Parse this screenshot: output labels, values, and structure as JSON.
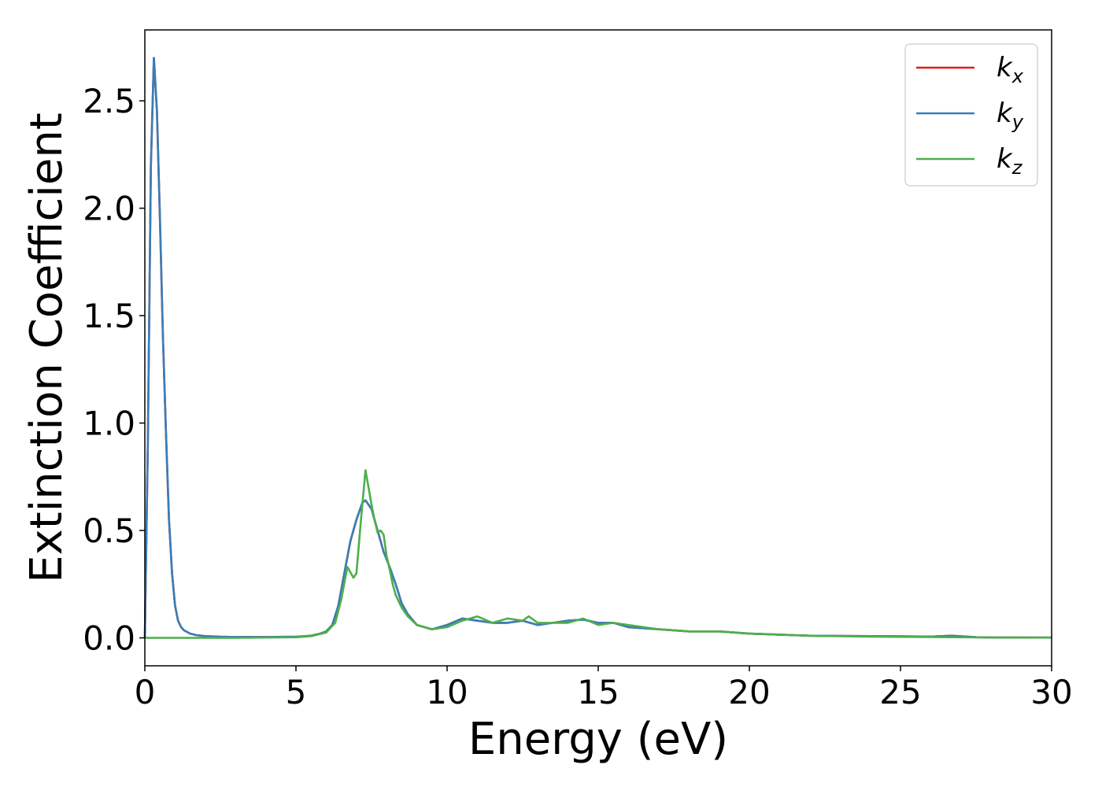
{
  "chart_data": {
    "type": "line",
    "title": "",
    "xlabel": "Energy (eV)",
    "ylabel": "Extinction Coefficient",
    "xlim": [
      0,
      30
    ],
    "ylim": [
      -0.13,
      2.83
    ],
    "xticks": [
      0,
      5,
      10,
      15,
      20,
      25,
      30
    ],
    "xtick_labels": [
      "0",
      "5",
      "10",
      "15",
      "20",
      "25",
      "30"
    ],
    "yticks": [
      0.0,
      0.5,
      1.0,
      1.5,
      2.0,
      2.5
    ],
    "ytick_labels": [
      "0.0",
      "0.5",
      "1.0",
      "1.5",
      "2.0",
      "2.5"
    ],
    "grid": false,
    "legend_position": "top-right",
    "series": [
      {
        "name": "k_x",
        "legend_base": "k",
        "legend_sub": "x",
        "color": "#e41a1c",
        "x": [
          0.0,
          0.1,
          0.2,
          0.3,
          0.4,
          0.5,
          0.6,
          0.7,
          0.8,
          0.9,
          1.0,
          1.1,
          1.2,
          1.3,
          1.5,
          1.7,
          2.0,
          2.5,
          3.0,
          4.0,
          5.0,
          5.5,
          5.8,
          6.0,
          6.2,
          6.4,
          6.6,
          6.8,
          7.0,
          7.2,
          7.3,
          7.5,
          7.7,
          7.9,
          8.1,
          8.3,
          8.5,
          8.7,
          9.0,
          9.5,
          10.0,
          10.5,
          11.0,
          11.5,
          12.0,
          12.5,
          13.0,
          13.5,
          14.0,
          14.5,
          15.0,
          15.5,
          16.0,
          17.0,
          18.0,
          19.0,
          20.0,
          21.0,
          22.0,
          24.0,
          26.0,
          26.7,
          27.5,
          28.0,
          30.0
        ],
        "y": [
          0.0,
          0.9,
          2.2,
          2.7,
          2.45,
          1.95,
          1.4,
          0.95,
          0.55,
          0.3,
          0.15,
          0.08,
          0.05,
          0.035,
          0.02,
          0.013,
          0.008,
          0.005,
          0.004,
          0.004,
          0.005,
          0.01,
          0.02,
          0.03,
          0.06,
          0.15,
          0.3,
          0.45,
          0.55,
          0.63,
          0.64,
          0.6,
          0.5,
          0.4,
          0.33,
          0.25,
          0.16,
          0.11,
          0.06,
          0.04,
          0.06,
          0.09,
          0.08,
          0.07,
          0.07,
          0.08,
          0.06,
          0.07,
          0.08,
          0.085,
          0.07,
          0.07,
          0.05,
          0.04,
          0.03,
          0.03,
          0.02,
          0.015,
          0.01,
          0.008,
          0.006,
          0.01,
          0.003,
          0.002,
          0.001
        ]
      },
      {
        "name": "k_y",
        "legend_base": "k",
        "legend_sub": "y",
        "color": "#377eb8",
        "x": [
          0.0,
          0.1,
          0.2,
          0.3,
          0.4,
          0.5,
          0.6,
          0.7,
          0.8,
          0.9,
          1.0,
          1.1,
          1.2,
          1.3,
          1.5,
          1.7,
          2.0,
          2.5,
          3.0,
          4.0,
          5.0,
          5.5,
          5.8,
          6.0,
          6.2,
          6.4,
          6.6,
          6.8,
          7.0,
          7.2,
          7.3,
          7.5,
          7.7,
          7.9,
          8.1,
          8.3,
          8.5,
          8.7,
          9.0,
          9.5,
          10.0,
          10.5,
          11.0,
          11.5,
          12.0,
          12.5,
          13.0,
          13.5,
          14.0,
          14.5,
          15.0,
          15.5,
          16.0,
          17.0,
          18.0,
          19.0,
          20.0,
          21.0,
          22.0,
          24.0,
          26.0,
          26.7,
          27.5,
          28.0,
          30.0
        ],
        "y": [
          0.0,
          0.9,
          2.2,
          2.7,
          2.45,
          1.95,
          1.4,
          0.95,
          0.55,
          0.3,
          0.15,
          0.08,
          0.05,
          0.035,
          0.02,
          0.013,
          0.008,
          0.005,
          0.004,
          0.004,
          0.005,
          0.01,
          0.02,
          0.03,
          0.06,
          0.15,
          0.3,
          0.45,
          0.55,
          0.63,
          0.64,
          0.6,
          0.5,
          0.4,
          0.33,
          0.25,
          0.16,
          0.11,
          0.06,
          0.04,
          0.06,
          0.09,
          0.08,
          0.07,
          0.07,
          0.08,
          0.06,
          0.07,
          0.08,
          0.085,
          0.07,
          0.07,
          0.05,
          0.04,
          0.03,
          0.03,
          0.02,
          0.015,
          0.01,
          0.008,
          0.006,
          0.01,
          0.003,
          0.002,
          0.001
        ]
      },
      {
        "name": "k_z",
        "legend_base": "k",
        "legend_sub": "z",
        "color": "#4daf4a",
        "x": [
          0.0,
          1.0,
          3.0,
          5.0,
          5.5,
          6.0,
          6.3,
          6.5,
          6.7,
          6.9,
          7.0,
          7.15,
          7.3,
          7.4,
          7.5,
          7.6,
          7.7,
          7.8,
          7.9,
          8.0,
          8.1,
          8.2,
          8.3,
          8.5,
          8.7,
          9.0,
          9.5,
          10.0,
          10.5,
          11.0,
          11.5,
          12.0,
          12.5,
          12.7,
          13.0,
          13.5,
          14.0,
          14.5,
          15.0,
          15.5,
          16.0,
          17.0,
          18.0,
          19.0,
          20.0,
          21.0,
          22.0,
          24.0,
          26.0,
          28.0,
          30.0
        ],
        "y": [
          0.0,
          0.0,
          0.0,
          0.003,
          0.008,
          0.025,
          0.07,
          0.18,
          0.33,
          0.28,
          0.3,
          0.55,
          0.78,
          0.7,
          0.62,
          0.55,
          0.49,
          0.5,
          0.48,
          0.38,
          0.32,
          0.25,
          0.2,
          0.14,
          0.1,
          0.06,
          0.04,
          0.05,
          0.08,
          0.1,
          0.07,
          0.09,
          0.08,
          0.1,
          0.07,
          0.07,
          0.07,
          0.09,
          0.06,
          0.07,
          0.06,
          0.04,
          0.03,
          0.03,
          0.02,
          0.015,
          0.01,
          0.006,
          0.004,
          0.002,
          0.001
        ]
      }
    ]
  }
}
